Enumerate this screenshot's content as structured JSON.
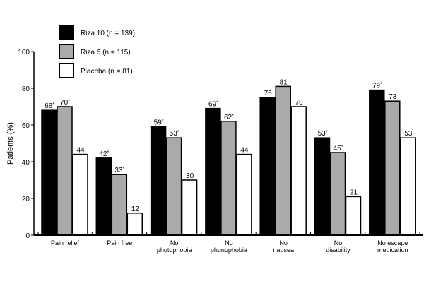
{
  "chart_data": {
    "type": "bar",
    "title": "",
    "xlabel": "",
    "ylabel": "Patients (%)",
    "ylim": [
      0,
      100
    ],
    "yticks": [
      0,
      20,
      40,
      60,
      80,
      100
    ],
    "grid": false,
    "legend_position": "top-left",
    "categories": [
      [
        "Pain relief"
      ],
      [
        "Pain free"
      ],
      [
        "No",
        "photophobia"
      ],
      [
        "No",
        "phonophobia"
      ],
      [
        "No",
        "nausea"
      ],
      [
        "No",
        "disability"
      ],
      [
        "No escape",
        "medication"
      ]
    ],
    "series": [
      {
        "name": "Riza 10 (n = 139)",
        "color": "#000000",
        "values": [
          68,
          42,
          59,
          69,
          75,
          53,
          79
        ],
        "labels": [
          "68*",
          "42*",
          "59*",
          "69*",
          "75",
          "53*",
          "79*"
        ]
      },
      {
        "name": "Riza 5 (n = 115)",
        "color": "#aaaaaa",
        "values": [
          70,
          33,
          53,
          62,
          81,
          45,
          73
        ],
        "labels": [
          "70*",
          "33*",
          "53*",
          "62*",
          "81",
          "45*",
          "73"
        ]
      },
      {
        "name": "Placeba (n = 81)",
        "color": "#ffffff",
        "values": [
          44,
          12,
          30,
          44,
          70,
          21,
          53
        ],
        "labels": [
          "44",
          "12",
          "30",
          "44",
          "70",
          "21",
          "53"
        ]
      }
    ]
  }
}
